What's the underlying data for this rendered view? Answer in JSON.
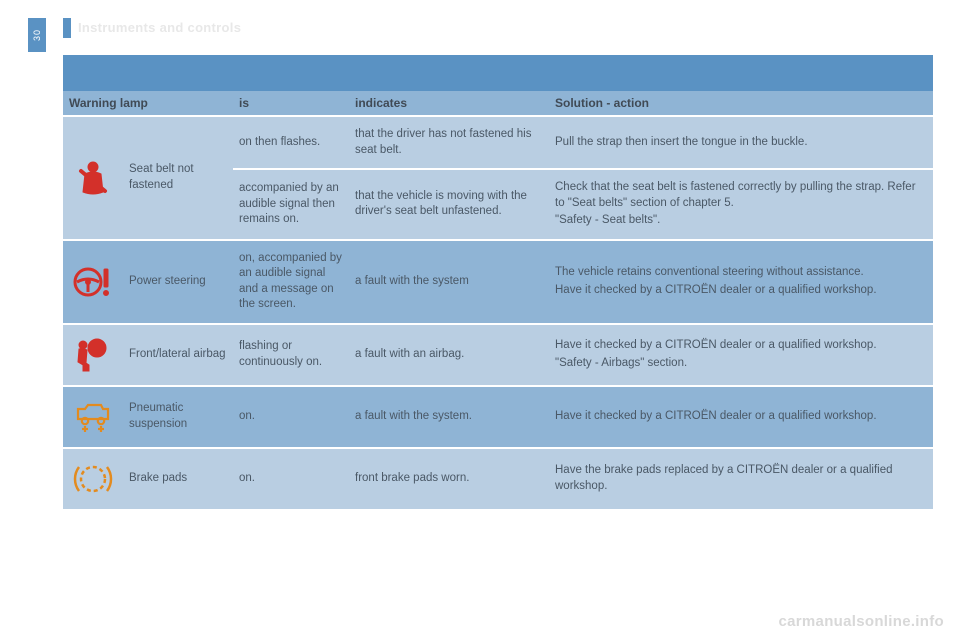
{
  "page_number": "30",
  "section_title": "Instruments and controls",
  "colors": {
    "banner": "#5a92c3",
    "header_bg": "#8fb4d5",
    "row_a": "#b9cee2",
    "row_b": "#8fb4d5",
    "text": "#4a5866",
    "icon_red": "#d3302a",
    "icon_amber": "#e38b1f",
    "title_gray": "#e8e8e8",
    "watermark_gray": "#d8d8d8"
  },
  "fonts": {
    "body_size_pt": 9,
    "header_size_pt": 9,
    "header_weight": "bold"
  },
  "header": {
    "col1": "Warning lamp",
    "col2": "is",
    "col3": "indicates",
    "col4": "Solution - action"
  },
  "rows": [
    {
      "shade": "a",
      "icon": "seatbelt",
      "icon_color": "#d3302a",
      "name": "Seat belt not fastened",
      "subrows": [
        {
          "is": "on then flashes.",
          "indicates": "that the driver has not fastened his seat belt.",
          "solution": [
            "Pull the strap then insert the tongue in the buckle."
          ]
        },
        {
          "is": "accompanied by an audible signal then remains on.",
          "indicates": "that the vehicle is moving with the driver's seat belt unfastened.",
          "solution": [
            "Check that the seat belt is fastened correctly by pulling the strap. Refer to \"Seat belts\" section of chapter 5.",
            "\"Safety - Seat belts\"."
          ]
        }
      ]
    },
    {
      "shade": "b",
      "icon": "power-steering",
      "icon_color": "#d3302a",
      "name": "Power steering",
      "subrows": [
        {
          "is": "on, accompanied by an audible signal and a message on the screen.",
          "indicates": "a fault with the system",
          "solution": [
            "The vehicle retains conventional steering without assistance.",
            "Have it checked by a CITROËN dealer or a qualified workshop."
          ]
        }
      ]
    },
    {
      "shade": "a",
      "icon": "airbag",
      "icon_color": "#d3302a",
      "name": "Front/lateral airbag",
      "subrows": [
        {
          "is": "flashing or continuously on.",
          "indicates": "a fault with an airbag.",
          "solution": [
            "Have it checked by a CITROËN dealer or a qualified workshop.",
            "\"Safety - Airbags\" section."
          ]
        }
      ]
    },
    {
      "shade": "b",
      "icon": "pneumatic",
      "icon_color": "#e38b1f",
      "name": "Pneumatic suspension",
      "subrows": [
        {
          "is": "on.",
          "indicates": "a fault with the system.",
          "solution": [
            "Have it checked by a CITROËN dealer or a qualified workshop."
          ]
        }
      ]
    },
    {
      "shade": "a",
      "icon": "brake-pads",
      "icon_color": "#e38b1f",
      "name": "Brake pads",
      "subrows": [
        {
          "is": "on.",
          "indicates": "front brake pads worn.",
          "solution": [
            "Have the brake pads replaced by a CITROËN dealer or a qualified workshop."
          ]
        }
      ]
    }
  ],
  "watermark": "carmanualsonline.info"
}
